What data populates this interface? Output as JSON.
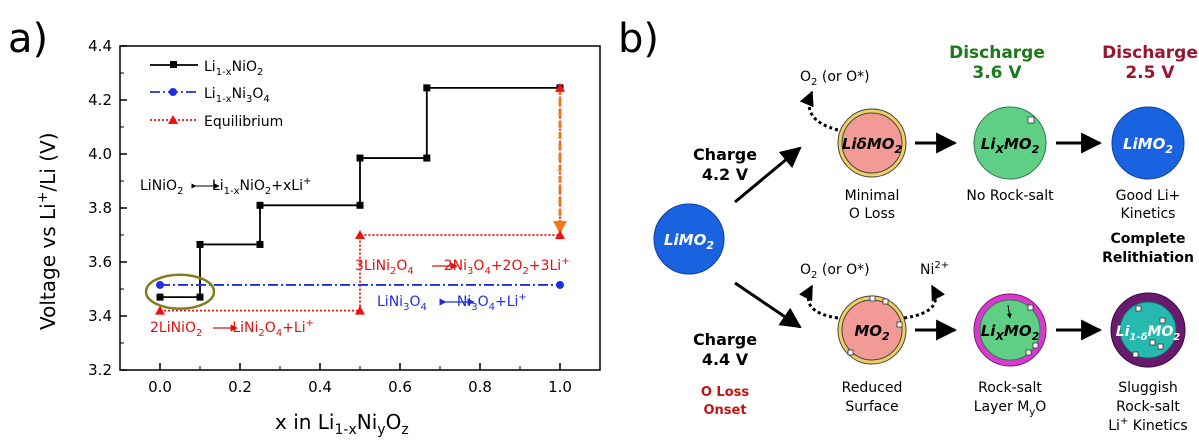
{
  "panels": {
    "a": "a)",
    "b": "b)"
  },
  "chart_data": {
    "type": "line",
    "xlabel": "x in Li1-xNiyOz",
    "ylabel": "Voltage vs Li+/Li (V)",
    "xlim": [
      -0.1,
      1.1
    ],
    "ylim": [
      3.2,
      4.4
    ],
    "x_ticks": [
      "0.0",
      "0.2",
      "0.4",
      "0.6",
      "0.8",
      "1.0"
    ],
    "y_ticks": [
      "3.2",
      "3.4",
      "3.6",
      "3.8",
      "4.0",
      "4.2",
      "4.4"
    ],
    "legend_position": "top-left",
    "series": [
      {
        "name": "Li1-xNiO2",
        "color": "#000000",
        "marker": "square",
        "line": "solid",
        "points": [
          [
            0.0,
            3.47
          ],
          [
            0.1,
            3.47
          ],
          [
            0.1,
            3.665
          ],
          [
            0.25,
            3.665
          ],
          [
            0.25,
            3.81
          ],
          [
            0.5,
            3.81
          ],
          [
            0.5,
            3.985
          ],
          [
            0.667,
            3.985
          ],
          [
            0.667,
            4.245
          ],
          [
            1.0,
            4.245
          ]
        ]
      },
      {
        "name": "Li1-xNi3O4",
        "color": "#1f2fe0",
        "marker": "circle",
        "line": "dashdot",
        "points": [
          [
            0.0,
            3.515
          ],
          [
            1.0,
            3.515
          ]
        ]
      },
      {
        "name": "Equilibrium",
        "color": "#ee1111",
        "marker": "triangle",
        "line": "dotted",
        "points": [
          [
            0.0,
            3.42
          ],
          [
            0.5,
            3.42
          ],
          [
            0.5,
            3.7
          ],
          [
            1.0,
            3.7
          ],
          [
            1.0,
            4.245
          ]
        ]
      }
    ],
    "arrow": {
      "from": [
        1.0,
        4.245
      ],
      "to": [
        1.0,
        3.7
      ],
      "color": "#f07a1a"
    },
    "circled": {
      "x": [
        0.0,
        0.1
      ],
      "y": 3.49,
      "color": "#7f7f1f"
    },
    "annotations": {
      "a1": {
        "left": "LiNiO",
        "s1": "2",
        "mid": "Li",
        "s2": "1-x",
        "right": "NiO",
        "s3": "2",
        "end": "+xLi",
        "sup": "+"
      },
      "a2": {
        "left": "3LiNi",
        "s1": "2",
        "m1": "O",
        "s2": "4",
        "m2": "2Ni",
        "s3": "3",
        "m3": "O",
        "s4": "4",
        "m4": "+2O",
        "s5": "2",
        "m5": "+3Li",
        "sup": "+"
      },
      "a3": {
        "left": "LiNi",
        "s1": "3",
        "m1": "O",
        "s2": "4",
        "m2": "Ni",
        "s3": "3",
        "m3": "O",
        "s4": "4",
        "m4": "+Li",
        "sup": "+"
      },
      "a4": {
        "left": "2LiNiO",
        "s1": "2",
        "m1": "LiNi",
        "s2": "2",
        "m2": "O",
        "s3": "4",
        "m3": "+Li",
        "sup": "+"
      }
    }
  },
  "legend_text": {
    "l1": {
      "a": "Li",
      "b": "1-x",
      "c": "NiO",
      "d": "2"
    },
    "l2": {
      "a": "Li",
      "b": "1-x",
      "c": "Ni",
      "d": "3",
      "e": "O",
      "f": "4"
    },
    "l3": {
      "a": "Equilibrium"
    }
  },
  "axis_text": {
    "xlabel": {
      "a": "x in Li",
      "b": "1-x",
      "c": "Ni",
      "d": "y",
      "e": "O",
      "f": "z"
    },
    "ylabel": {
      "a": "Voltage vs Li",
      "b": "+",
      "c": "/Li (V)"
    }
  },
  "diagram": {
    "discharge36": {
      "t1": "Discharge",
      "t2": "3.6 V",
      "color": "#1a7a1a"
    },
    "discharge25": {
      "t1": "Discharge",
      "t2": "2.5 V",
      "color": "#9a1530"
    },
    "charge42": {
      "t1": "Charge",
      "t2": "4.2 V"
    },
    "charge44": {
      "t1": "Charge",
      "t2": "4.4 V"
    },
    "oloss": {
      "t1": "O Loss",
      "t2": "Onset",
      "color": "#c01515"
    },
    "o2_top": {
      "a": "O",
      "b": "2",
      "c": " (or O*)"
    },
    "o2_bot": {
      "a": "O",
      "b": "2",
      "c": " (or O*)"
    },
    "ni2": {
      "a": "Ni",
      "b": "2+"
    },
    "start": {
      "a": "LiMO",
      "b": "2"
    },
    "c1": {
      "a": "Li",
      "b": "δ",
      "c": "MO",
      "d": "2",
      "cap1": "Minimal",
      "cap2": "O Loss"
    },
    "c2": {
      "a": "Li",
      "b": "X",
      "c": "MO",
      "d": "2",
      "cap1": "No Rock-salt"
    },
    "c3": {
      "a": "LiMO",
      "b": "2",
      "cap1": "Good Li+",
      "cap2": "Kinetics",
      "cap3": "Complete",
      "cap4": "Relithiation"
    },
    "c4": {
      "a": "MO",
      "b": "2",
      "cap1": "Reduced",
      "cap2": "Surface"
    },
    "c5": {
      "a": "Li",
      "b": "X",
      "c": "MO",
      "d": "2",
      "cap1": "Rock-salt",
      "cap2": "Layer M",
      "cap2b": "y",
      "cap2c": "O"
    },
    "c6": {
      "a": "Li",
      "b": "1-δ",
      "c": "MO",
      "d": "2",
      "cap1": "Sluggish",
      "cap2": "Rock-salt",
      "cap3": "Li",
      "cap3s": "+",
      "cap3e": " Kinetics"
    },
    "colors": {
      "blue": "#1a63e0",
      "pink": "#f29a96",
      "green": "#5fcf86",
      "purple": "#6a1a6e",
      "teal": "#27b8b0",
      "magenta": "#d83ad0",
      "gold": "#c8a21a"
    }
  }
}
